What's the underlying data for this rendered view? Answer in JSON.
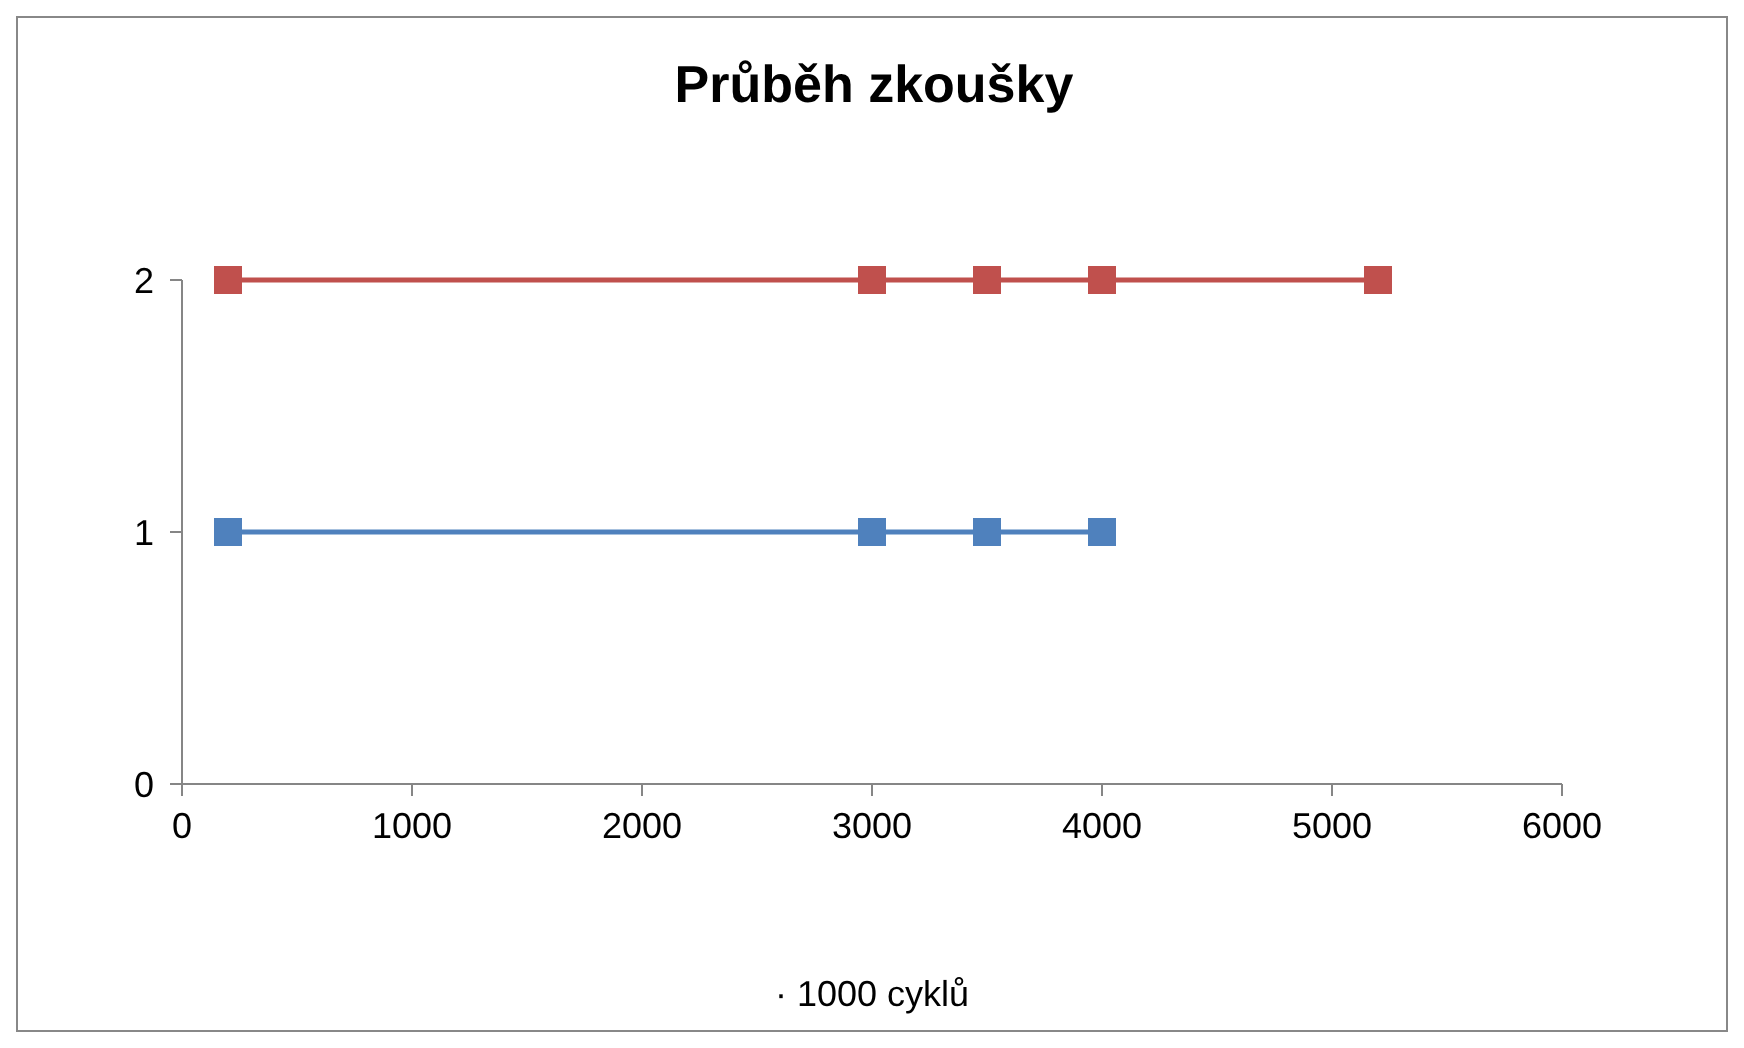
{
  "chart_data": {
    "type": "line",
    "title": "Průběh zkoušky",
    "xlabel": "· 1000 cyklů",
    "marker": "square",
    "line_style": "solid",
    "xlim": [
      0,
      6000
    ],
    "xticks": [
      0,
      1000,
      2000,
      3000,
      4000,
      5000,
      6000
    ],
    "ylim": [
      0,
      2
    ],
    "yticks": [
      0,
      1,
      2
    ],
    "series": [
      {
        "color": "#4f81bd",
        "x": [
          200,
          3000,
          3500,
          4000
        ],
        "values": [
          1,
          1,
          1,
          1
        ]
      },
      {
        "color": "#c0504d",
        "x": [
          200,
          3000,
          3500,
          4000,
          5200
        ],
        "values": [
          2,
          2,
          2,
          2,
          2
        ]
      }
    ]
  }
}
